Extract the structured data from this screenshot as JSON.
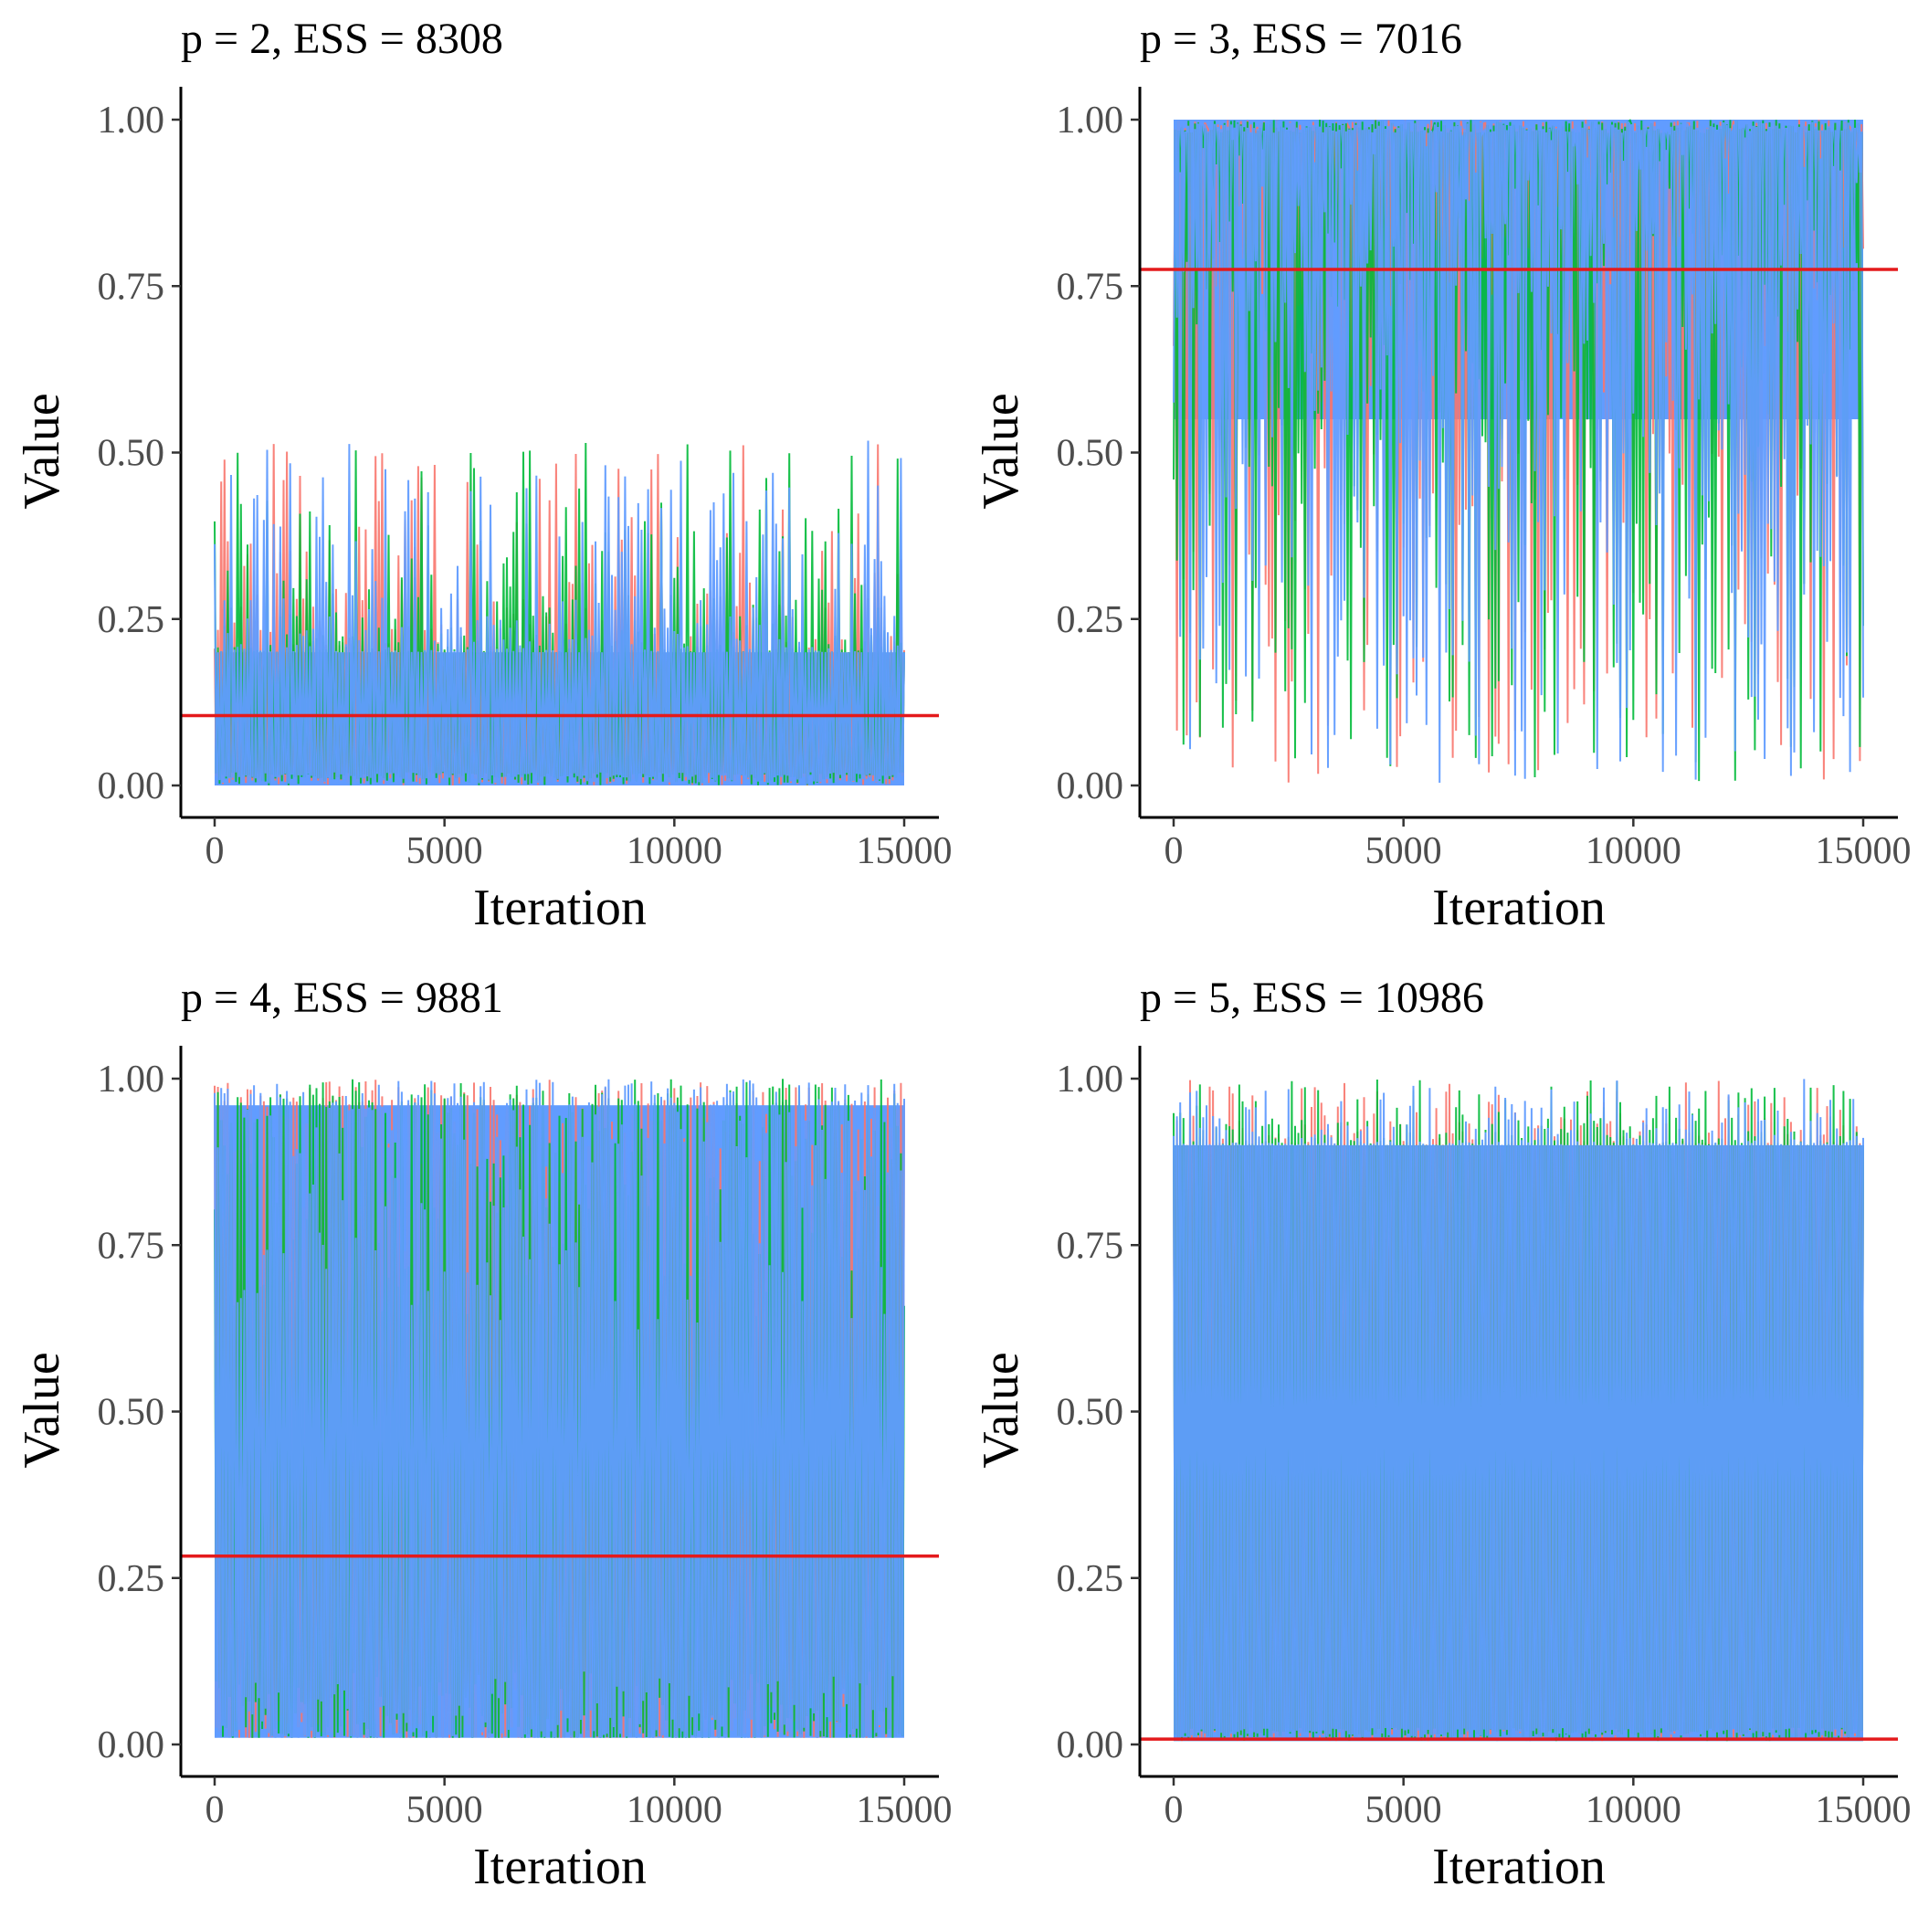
{
  "chart_data": [
    {
      "type": "line",
      "title": "p = 2, ESS = 8308",
      "xlabel": "Iteration",
      "ylabel": "Value",
      "xlim": [
        0,
        15000
      ],
      "ylim": [
        0,
        1
      ],
      "x_ticks": [
        0,
        5000,
        10000,
        15000
      ],
      "x_tick_labels": [
        "0",
        "5000",
        "10000",
        "15000"
      ],
      "y_ticks": [
        0,
        0.25,
        0.5,
        0.75,
        1
      ],
      "y_tick_labels": [
        "0.00",
        "0.25",
        "0.50",
        "0.75",
        "1.00"
      ],
      "reference_line": 0.105,
      "chain_colors": [
        "#F8766D",
        "#00BA38",
        "#619CFF"
      ],
      "reference_color": "#E41A1C",
      "chain_range": [
        0,
        1
      ],
      "dense_band": [
        0,
        0.2
      ],
      "spike_direction": "up",
      "max_spike": 0.52,
      "iterations": 15000,
      "seed": 2
    },
    {
      "type": "line",
      "title": "p = 3, ESS = 7016",
      "xlabel": "Iteration",
      "ylabel": "Value",
      "xlim": [
        0,
        15000
      ],
      "ylim": [
        0,
        1
      ],
      "x_ticks": [
        0,
        5000,
        10000,
        15000
      ],
      "x_tick_labels": [
        "0",
        "5000",
        "10000",
        "15000"
      ],
      "y_ticks": [
        0,
        0.25,
        0.5,
        0.75,
        1
      ],
      "y_tick_labels": [
        "0.00",
        "0.25",
        "0.50",
        "0.75",
        "1.00"
      ],
      "reference_line": 0.775,
      "chain_colors": [
        "#F8766D",
        "#00BA38",
        "#619CFF"
      ],
      "reference_color": "#E41A1C",
      "chain_range": [
        0,
        1
      ],
      "dense_band": [
        0.55,
        1
      ],
      "spike_direction": "down",
      "max_spike": 0,
      "iterations": 15000,
      "seed": 3
    },
    {
      "type": "line",
      "title": "p = 4, ESS = 9881",
      "xlabel": "Iteration",
      "ylabel": "Value",
      "xlim": [
        0,
        15000
      ],
      "ylim": [
        0,
        1
      ],
      "x_ticks": [
        0,
        5000,
        10000,
        15000
      ],
      "x_tick_labels": [
        "0",
        "5000",
        "10000",
        "15000"
      ],
      "y_ticks": [
        0,
        0.25,
        0.5,
        0.75,
        1
      ],
      "y_tick_labels": [
        "0.00",
        "0.25",
        "0.50",
        "0.75",
        "1.00"
      ],
      "reference_line": 0.283,
      "chain_colors": [
        "#F8766D",
        "#00BA38",
        "#619CFF"
      ],
      "reference_color": "#E41A1C",
      "chain_range": [
        0,
        1
      ],
      "dense_band": [
        0.01,
        0.96
      ],
      "spike_direction": "both",
      "max_spike": 1,
      "iterations": 15000,
      "seed": 4
    },
    {
      "type": "line",
      "title": "p = 5, ESS = 10986",
      "xlabel": "Iteration",
      "ylabel": "Value",
      "xlim": [
        0,
        15000
      ],
      "ylim": [
        0,
        1
      ],
      "x_ticks": [
        0,
        5000,
        10000,
        15000
      ],
      "x_tick_labels": [
        "0",
        "5000",
        "10000",
        "15000"
      ],
      "y_ticks": [
        0,
        0.25,
        0.5,
        0.75,
        1
      ],
      "y_tick_labels": [
        "0.00",
        "0.25",
        "0.50",
        "0.75",
        "1.00"
      ],
      "reference_line": 0.008,
      "chain_colors": [
        "#F8766D",
        "#00BA38",
        "#619CFF"
      ],
      "reference_color": "#E41A1C",
      "chain_range": [
        0,
        1
      ],
      "dense_band": [
        0.005,
        0.9
      ],
      "spike_direction": "up",
      "max_spike": 1,
      "iterations": 15000,
      "seed": 5
    }
  ]
}
